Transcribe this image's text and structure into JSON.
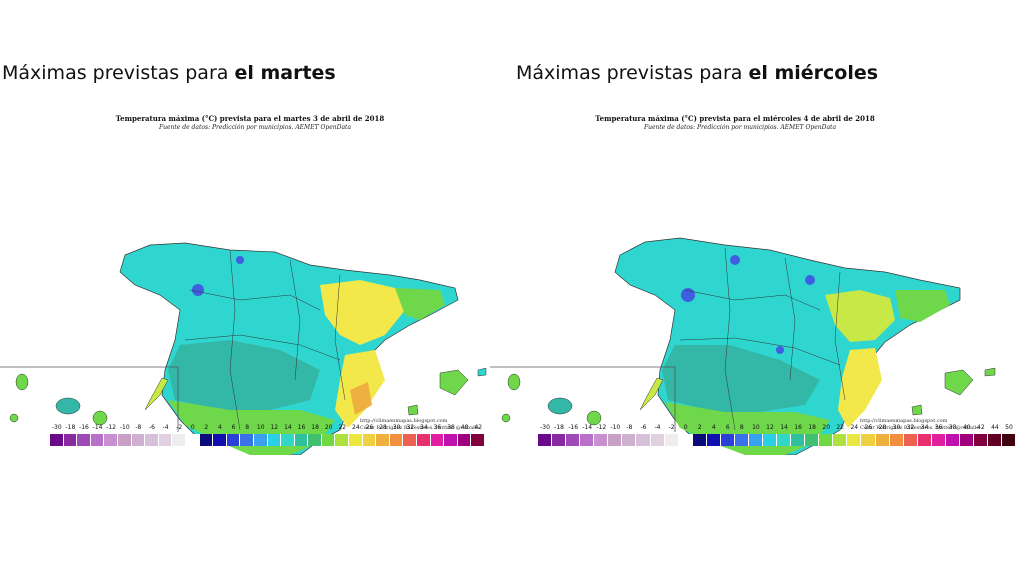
{
  "left": {
    "heading_normal": "Máximas previstas para ",
    "heading_bold": "el martes",
    "map_title": "Temperatura máxima (°C) prevista para el martes 3 de abril de 2018",
    "map_subtitle": "Fuente de datos: Predicción por municipios. AEMET OpenData",
    "credit_1": "http://climaenmapas.blogspot.com",
    "credit_2": "César Rodríguez Ballesteros. twitter: @cdballe",
    "scale_ticks": [
      "-30",
      "-18",
      "-16",
      "-14",
      "-12",
      "-10",
      "-8",
      "-6",
      "-4",
      "-2",
      "0",
      "2",
      "4",
      "6",
      "8",
      "10",
      "12",
      "14",
      "16",
      "18",
      "20",
      "22",
      "24",
      "26",
      "28",
      "30",
      "32",
      "34",
      "36",
      "38",
      "40",
      "42"
    ]
  },
  "right": {
    "heading_normal": "Máximas previstas para ",
    "heading_bold": "el miércoles",
    "map_title": "Temperatura máxima (°C) prevista para el miércoles 4 de abril de 2018",
    "map_subtitle": "Fuente de datos: Predicción por municipios. AEMET OpenData",
    "credit_1": "http://climaenmapas.blogspot.com",
    "credit_2": "César Rodríguez Ballesteros. twitter: @cdballe",
    "scale_ticks": [
      "-30",
      "-18",
      "-16",
      "-14",
      "-12",
      "-10",
      "-8",
      "-6",
      "-4",
      "-2",
      "0",
      "2",
      "4",
      "6",
      "8",
      "10",
      "12",
      "14",
      "16",
      "18",
      "20",
      "22",
      "24",
      "26",
      "28",
      "30",
      "32",
      "34",
      "36",
      "38",
      "40",
      "42",
      "44",
      "50"
    ]
  },
  "colors": {
    "cold_blue": "#3f5fe0",
    "cyan": "#2fd6d0",
    "teal": "#33b8a8",
    "green": "#6ed84a",
    "yellow_green": "#c8e845",
    "yellow": "#f3e84a",
    "orange": "#f0b040"
  },
  "scale_colors": [
    "#6a0a8a",
    "#8a2aa0",
    "#a04ab8",
    "#b870c8",
    "#c890d0",
    "#c8a0c8",
    "#d0b0d0",
    "#d8c0d8",
    "#e0d0e0",
    "#eeeeee",
    "#ffffff",
    "#0a0a7a",
    "#1010b0",
    "#2a40d8",
    "#3a70e8",
    "#3aa0f0",
    "#2ad0e8",
    "#30d8c8",
    "#30c0a0",
    "#40c070",
    "#70d840",
    "#b0e040",
    "#e8e840",
    "#f0d040",
    "#f0b040",
    "#f09040",
    "#f06050",
    "#e83070",
    "#e020a0",
    "#c010b0",
    "#a00080",
    "#800040",
    "#600020",
    "#400010"
  ]
}
